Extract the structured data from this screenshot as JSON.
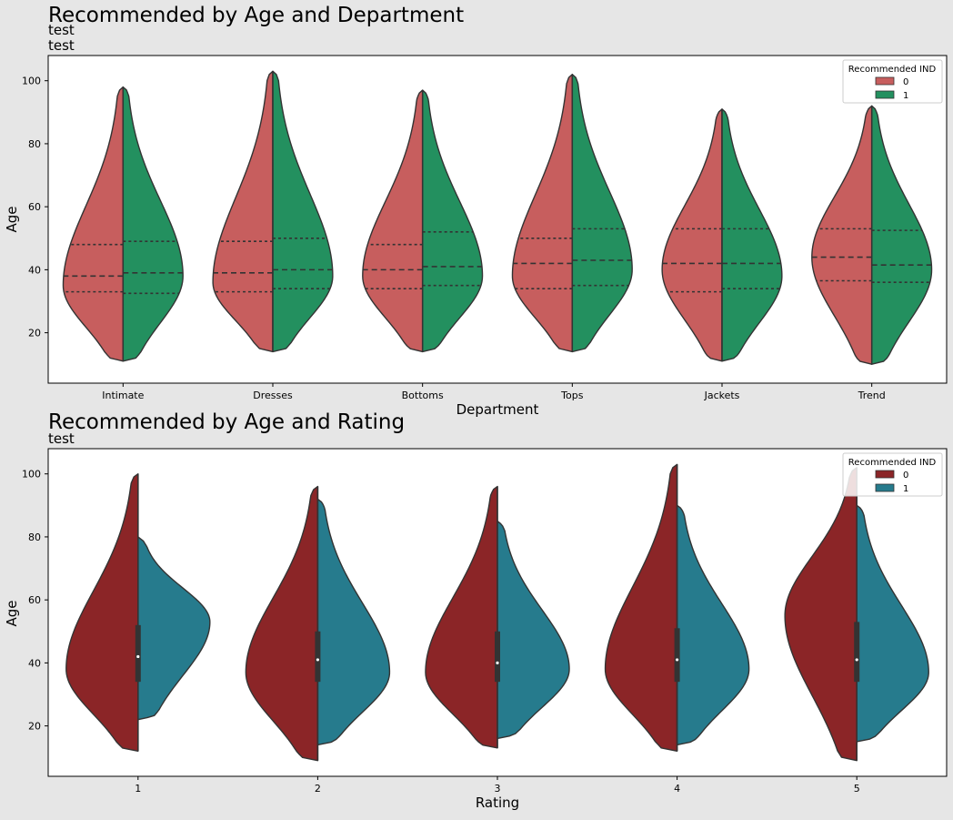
{
  "figure": {
    "background": "#e6e6e6"
  },
  "chart_data": [
    {
      "type": "violin",
      "title": "Recommended by Age and Department",
      "subtitles": [
        "test",
        "test"
      ],
      "xlabel": "Department",
      "ylabel": "Age",
      "ylim": [
        4,
        108
      ],
      "yticks": [
        20,
        40,
        60,
        80,
        100
      ],
      "categories": [
        "Intimate",
        "Dresses",
        "Bottoms",
        "Tops",
        "Jackets",
        "Trend"
      ],
      "split": true,
      "inner": "quartile",
      "legend": {
        "title": "Recommended IND",
        "placement": "top-right",
        "entries": [
          "0",
          "1"
        ]
      },
      "series": [
        {
          "name": "0",
          "color": "#c75e5e",
          "violins": [
            {
              "min": 11,
              "max": 98,
              "mode": 35,
              "q1": 33,
              "median": 38,
              "q3": 48
            },
            {
              "min": 14,
              "max": 103,
              "mode": 36,
              "q1": 33,
              "median": 39,
              "q3": 49
            },
            {
              "min": 14,
              "max": 97,
              "mode": 38,
              "q1": 34,
              "median": 40,
              "q3": 48
            },
            {
              "min": 14,
              "max": 102,
              "mode": 38,
              "q1": 34,
              "median": 42,
              "q3": 50
            },
            {
              "min": 11,
              "max": 91,
              "mode": 40,
              "q1": 33,
              "median": 42,
              "q3": 53
            },
            {
              "min": 10,
              "max": 92,
              "mode": 44,
              "q1": 36.5,
              "median": 44,
              "q3": 53
            }
          ]
        },
        {
          "name": "1",
          "color": "#23905f",
          "violins": [
            {
              "min": 11,
              "max": 98,
              "mode": 38,
              "q1": 32.5,
              "median": 39,
              "q3": 49
            },
            {
              "min": 14,
              "max": 103,
              "mode": 38,
              "q1": 34,
              "median": 40,
              "q3": 50
            },
            {
              "min": 14,
              "max": 97,
              "mode": 38,
              "q1": 35,
              "median": 41,
              "q3": 52
            },
            {
              "min": 14,
              "max": 102,
              "mode": 40,
              "q1": 35,
              "median": 43,
              "q3": 53
            },
            {
              "min": 11,
              "max": 91,
              "mode": 38,
              "q1": 34,
              "median": 42,
              "q3": 53
            },
            {
              "min": 10,
              "max": 92,
              "mode": 40,
              "q1": 36,
              "median": 41.5,
              "q3": 52.5
            }
          ]
        }
      ]
    },
    {
      "type": "violin",
      "title": "Recommended by Age and Rating",
      "subtitles": [
        "test"
      ],
      "xlabel": "Rating",
      "ylabel": "Age",
      "ylim": [
        4,
        108
      ],
      "yticks": [
        20,
        40,
        60,
        80,
        100
      ],
      "categories": [
        "1",
        "2",
        "3",
        "4",
        "5"
      ],
      "split": true,
      "inner": "box",
      "legend": {
        "title": "Recommended IND",
        "placement": "top-right",
        "entries": [
          "0",
          "1"
        ]
      },
      "boxes": [
        {
          "q1": 34,
          "median": 42,
          "q3": 52
        },
        {
          "q1": 34,
          "median": 41,
          "q3": 50
        },
        {
          "q1": 34,
          "median": 40,
          "q3": 50
        },
        {
          "q1": 34,
          "median": 41,
          "q3": 51
        },
        {
          "q1": 34,
          "median": 41,
          "q3": 53
        }
      ],
      "series": [
        {
          "name": "0",
          "color": "#8b2527",
          "violins": [
            {
              "min": 12,
              "max": 100,
              "mode": 38
            },
            {
              "min": 9,
              "max": 96,
              "mode": 37
            },
            {
              "min": 13,
              "max": 96,
              "mode": 37
            },
            {
              "min": 12,
              "max": 103,
              "mode": 38
            },
            {
              "min": 9,
              "max": 102,
              "mode": 55
            }
          ]
        },
        {
          "name": "1",
          "color": "#267b8d",
          "violins": [
            {
              "min": 22,
              "max": 80,
              "mode": 53
            },
            {
              "min": 14,
              "max": 92,
              "mode": 37
            },
            {
              "min": 16,
              "max": 85,
              "mode": 38
            },
            {
              "min": 14,
              "max": 90,
              "mode": 38
            },
            {
              "min": 15,
              "max": 90,
              "mode": 37
            }
          ]
        }
      ]
    }
  ]
}
